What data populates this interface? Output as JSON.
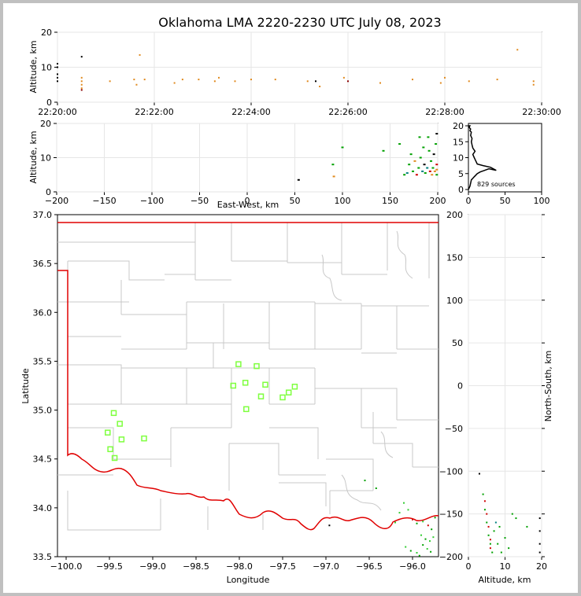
{
  "chart_data": [
    {
      "id": "time_height",
      "type": "scatter",
      "title": "Oklahoma LMA 2220-2230 UTC July 08, 2023",
      "xlabel": "",
      "ylabel": "Altitude, km",
      "xlim": [
        "22:20:00",
        "22:30:00"
      ],
      "ylim": [
        0,
        20
      ],
      "xticks": [
        "22:20:00",
        "22:22:00",
        "22:24:00",
        "22:26:00",
        "22:28:00",
        "22:30:00"
      ],
      "yticks": [
        0,
        10,
        20
      ],
      "grid": true,
      "points": [
        {
          "x": "22:20:00",
          "y": 11,
          "color": "#000000"
        },
        {
          "x": "22:20:00",
          "y": 10,
          "color": "#000000"
        },
        {
          "x": "22:20:00",
          "y": 8,
          "color": "#000000"
        },
        {
          "x": "22:20:00",
          "y": 7,
          "color": "#000000"
        },
        {
          "x": "22:20:00",
          "y": 6,
          "color": "#000000"
        },
        {
          "x": "22:20:30",
          "y": 13,
          "color": "#000000"
        },
        {
          "x": "22:20:30",
          "y": 7,
          "color": "#e08a1e"
        },
        {
          "x": "22:20:30",
          "y": 6,
          "color": "#e08a1e"
        },
        {
          "x": "22:20:30",
          "y": 5,
          "color": "#e08a1e"
        },
        {
          "x": "22:20:30",
          "y": 4,
          "color": "#e08a1e"
        },
        {
          "x": "22:20:30",
          "y": 3.5,
          "color": "#8b0000"
        },
        {
          "x": "22:21:05",
          "y": 6,
          "color": "#e08a1e"
        },
        {
          "x": "22:21:35",
          "y": 6.5,
          "color": "#e08a1e"
        },
        {
          "x": "22:21:38",
          "y": 5,
          "color": "#e08a1e"
        },
        {
          "x": "22:21:42",
          "y": 13.5,
          "color": "#e08a1e"
        },
        {
          "x": "22:21:48",
          "y": 6.5,
          "color": "#e08a1e"
        },
        {
          "x": "22:22:25",
          "y": 5.5,
          "color": "#e08a1e"
        },
        {
          "x": "22:22:35",
          "y": 6.5,
          "color": "#e08a1e"
        },
        {
          "x": "22:22:55",
          "y": 6.5,
          "color": "#e08a1e"
        },
        {
          "x": "22:23:15",
          "y": 6,
          "color": "#e08a1e"
        },
        {
          "x": "22:23:20",
          "y": 7,
          "color": "#e08a1e"
        },
        {
          "x": "22:23:40",
          "y": 6,
          "color": "#e08a1e"
        },
        {
          "x": "22:24:00",
          "y": 6.5,
          "color": "#e08a1e"
        },
        {
          "x": "22:24:30",
          "y": 6.5,
          "color": "#e08a1e"
        },
        {
          "x": "22:25:10",
          "y": 6,
          "color": "#e08a1e"
        },
        {
          "x": "22:25:20",
          "y": 6,
          "color": "#000000"
        },
        {
          "x": "22:25:25",
          "y": 4.5,
          "color": "#e08a1e"
        },
        {
          "x": "22:25:55",
          "y": 7,
          "color": "#e08a1e"
        },
        {
          "x": "22:26:00",
          "y": 6,
          "color": "#8b0000"
        },
        {
          "x": "22:26:40",
          "y": 5.5,
          "color": "#e08a1e"
        },
        {
          "x": "22:27:20",
          "y": 6.5,
          "color": "#e08a1e"
        },
        {
          "x": "22:27:55",
          "y": 5.5,
          "color": "#e08a1e"
        },
        {
          "x": "22:28:00",
          "y": 7,
          "color": "#e08a1e"
        },
        {
          "x": "22:28:30",
          "y": 6,
          "color": "#e08a1e"
        },
        {
          "x": "22:29:05",
          "y": 6.5,
          "color": "#e08a1e"
        },
        {
          "x": "22:29:30",
          "y": 15,
          "color": "#e08a1e"
        },
        {
          "x": "22:29:50",
          "y": 6,
          "color": "#e08a1e"
        },
        {
          "x": "22:29:50",
          "y": 5,
          "color": "#e08a1e"
        }
      ]
    },
    {
      "id": "east_west",
      "type": "scatter",
      "title": "",
      "xlabel": "East-West, km",
      "ylabel": "Altitude, km",
      "xlim": [
        -200,
        200
      ],
      "ylim": [
        0,
        20
      ],
      "xticks": [
        -200,
        -150,
        -100,
        -50,
        0,
        50,
        100,
        150,
        200
      ],
      "yticks": [
        0,
        10,
        20
      ],
      "grid": true,
      "points": [
        {
          "x": 54,
          "y": 3.5,
          "color": "#000000"
        },
        {
          "x": 90,
          "y": 8,
          "color": "#00a000"
        },
        {
          "x": 91,
          "y": 4.5,
          "color": "#e08a1e"
        },
        {
          "x": 100,
          "y": 13,
          "color": "#00a000"
        },
        {
          "x": 143,
          "y": 12,
          "color": "#00a000"
        },
        {
          "x": 160,
          "y": 14,
          "color": "#00a000"
        },
        {
          "x": 165,
          "y": 5,
          "color": "#00a000"
        },
        {
          "x": 168,
          "y": 5.5,
          "color": "#008080"
        },
        {
          "x": 170,
          "y": 8,
          "color": "#00a000"
        },
        {
          "x": 172,
          "y": 11,
          "color": "#00a000"
        },
        {
          "x": 174,
          "y": 6,
          "color": "#00a000"
        },
        {
          "x": 176,
          "y": 9,
          "color": "#e08a1e"
        },
        {
          "x": 178,
          "y": 5,
          "color": "#d00000"
        },
        {
          "x": 180,
          "y": 7,
          "color": "#00a000"
        },
        {
          "x": 181,
          "y": 16,
          "color": "#00a000"
        },
        {
          "x": 182,
          "y": 10,
          "color": "#00a000"
        },
        {
          "x": 184,
          "y": 6,
          "color": "#008080"
        },
        {
          "x": 185,
          "y": 13,
          "color": "#00a000"
        },
        {
          "x": 186,
          "y": 8,
          "color": "#000000"
        },
        {
          "x": 187,
          "y": 5.5,
          "color": "#00a000"
        },
        {
          "x": 189,
          "y": 7,
          "color": "#008080"
        },
        {
          "x": 190,
          "y": 16,
          "color": "#00a000"
        },
        {
          "x": 191,
          "y": 12,
          "color": "#00a000"
        },
        {
          "x": 192,
          "y": 6,
          "color": "#d00000"
        },
        {
          "x": 193,
          "y": 9,
          "color": "#00a000"
        },
        {
          "x": 194,
          "y": 5,
          "color": "#e08a1e"
        },
        {
          "x": 195,
          "y": 7,
          "color": "#00a000"
        },
        {
          "x": 196,
          "y": 11,
          "color": "#000000"
        },
        {
          "x": 197,
          "y": 6,
          "color": "#e08a1e"
        },
        {
          "x": 198,
          "y": 14,
          "color": "#00a000"
        },
        {
          "x": 199,
          "y": 8,
          "color": "#d00000"
        },
        {
          "x": 199,
          "y": 6.5,
          "color": "#e08a1e"
        },
        {
          "x": 199,
          "y": 5,
          "color": "#00a000"
        },
        {
          "x": 199,
          "y": 17,
          "color": "#000000"
        }
      ]
    },
    {
      "id": "altitude_histogram",
      "type": "line",
      "title": "",
      "xlabel": "",
      "ylabel": "",
      "xlim": [
        0,
        100
      ],
      "ylim": [
        0,
        20
      ],
      "xticks": [
        0,
        50,
        100
      ],
      "yticks": [
        0,
        5,
        10,
        15,
        20
      ],
      "annotation": "829 sources",
      "x": [
        0,
        2,
        3,
        4,
        6,
        8,
        10,
        12,
        16,
        22,
        28,
        38,
        30,
        20,
        12,
        10,
        8,
        6,
        9,
        6,
        5,
        4,
        5,
        3,
        4,
        2,
        3,
        1,
        2,
        0
      ],
      "y": [
        0,
        1,
        2,
        3,
        3.5,
        4,
        4.5,
        5,
        5.5,
        6,
        6.5,
        6,
        7,
        7.5,
        8,
        9,
        10,
        11,
        12,
        13,
        14,
        15,
        16,
        17,
        18,
        18.5,
        19,
        19.5,
        20,
        20
      ]
    },
    {
      "id": "plan_view",
      "type": "scatter",
      "title": "",
      "xlabel": "Longitude",
      "ylabel": "Latitude",
      "xlim": [
        -100.1,
        -95.7
      ],
      "ylim": [
        33.5,
        37.0
      ],
      "xticks": [
        -100.0,
        -99.5,
        -99.0,
        -98.5,
        -98.0,
        -97.5,
        -97.0,
        -96.5,
        -96.0
      ],
      "xtick_labels": [
        "−100.0",
        "−99.5",
        "−99.0",
        "−98.5",
        "−98.0",
        "−97.5",
        "−97.0",
        "−96.5",
        "−96.0"
      ],
      "yticks": [
        33.5,
        34.0,
        34.5,
        35.0,
        35.5,
        36.0,
        36.5,
        37.0
      ],
      "stations": [
        [
          -99.45,
          34.97
        ],
        [
          -99.38,
          34.86
        ],
        [
          -99.52,
          34.77
        ],
        [
          -99.36,
          34.7
        ],
        [
          -99.49,
          34.6
        ],
        [
          -99.44,
          34.51
        ],
        [
          -99.1,
          34.71
        ],
        [
          -98.01,
          35.47
        ],
        [
          -97.8,
          35.45
        ],
        [
          -98.07,
          35.25
        ],
        [
          -97.93,
          35.28
        ],
        [
          -97.7,
          35.26
        ],
        [
          -97.36,
          35.24
        ],
        [
          -97.43,
          35.18
        ],
        [
          -97.75,
          35.14
        ],
        [
          -97.5,
          35.13
        ],
        [
          -97.92,
          35.01
        ]
      ],
      "points": [
        {
          "x": -96.96,
          "y": 33.82,
          "color": "#000000"
        },
        {
          "x": -96.42,
          "y": 34.2,
          "color": "#00a000"
        },
        {
          "x": -96.55,
          "y": 34.28,
          "color": "#00a000"
        },
        {
          "x": -96.1,
          "y": 34.05,
          "color": "#33cc33"
        },
        {
          "x": -96.05,
          "y": 33.98,
          "color": "#33cc33"
        },
        {
          "x": -96.0,
          "y": 33.88,
          "color": "#d00000"
        },
        {
          "x": -95.95,
          "y": 33.84,
          "color": "#00a000"
        },
        {
          "x": -95.88,
          "y": 33.86,
          "color": "#33cc33"
        },
        {
          "x": -95.82,
          "y": 33.82,
          "color": "#d00000"
        },
        {
          "x": -95.78,
          "y": 33.78,
          "color": "#00a000"
        },
        {
          "x": -95.9,
          "y": 33.72,
          "color": "#33cc33"
        },
        {
          "x": -95.85,
          "y": 33.68,
          "color": "#00a000"
        },
        {
          "x": -95.8,
          "y": 33.66,
          "color": "#33cc33"
        },
        {
          "x": -95.88,
          "y": 33.62,
          "color": "#00a000"
        },
        {
          "x": -95.83,
          "y": 33.58,
          "color": "#33cc33"
        },
        {
          "x": -95.79,
          "y": 33.55,
          "color": "#00a000"
        },
        {
          "x": -96.08,
          "y": 33.6,
          "color": "#33cc33"
        },
        {
          "x": -96.02,
          "y": 33.56,
          "color": "#00a000"
        },
        {
          "x": -95.95,
          "y": 33.54,
          "color": "#33cc33"
        },
        {
          "x": -95.92,
          "y": 33.51,
          "color": "#00a000"
        },
        {
          "x": -95.76,
          "y": 33.7,
          "color": "#33cc33"
        },
        {
          "x": -95.74,
          "y": 33.9,
          "color": "#00a000"
        },
        {
          "x": -96.2,
          "y": 33.85,
          "color": "#33cc33"
        },
        {
          "x": -96.15,
          "y": 33.95,
          "color": "#33cc33"
        }
      ]
    },
    {
      "id": "north_south",
      "type": "scatter",
      "title": "",
      "xlabel": "Altitude, km",
      "ylabel": "North-South, km",
      "xlim": [
        0,
        20
      ],
      "ylim": [
        -200,
        200
      ],
      "xticks": [
        0,
        10,
        20
      ],
      "yticks": [
        -200,
        -150,
        -100,
        -50,
        0,
        50,
        100,
        150,
        200
      ],
      "xtick_labels": [
        "0",
        "10",
        "20"
      ],
      "ytick_labels": [
        "−200",
        "−150",
        "−100",
        "−50",
        "0",
        "50",
        "100",
        "150",
        "200"
      ],
      "grid": true,
      "points": [
        {
          "x": 3,
          "y": -103,
          "color": "#000000"
        },
        {
          "x": 4,
          "y": -127,
          "color": "#00a000"
        },
        {
          "x": 4.5,
          "y": -135,
          "color": "#d00000"
        },
        {
          "x": 4.5,
          "y": -145,
          "color": "#00a000"
        },
        {
          "x": 5,
          "y": -150,
          "color": "#d00000"
        },
        {
          "x": 5,
          "y": -160,
          "color": "#00a000"
        },
        {
          "x": 5.5,
          "y": -165,
          "color": "#d00000"
        },
        {
          "x": 5.5,
          "y": -175,
          "color": "#00a000"
        },
        {
          "x": 6,
          "y": -180,
          "color": "#d00000"
        },
        {
          "x": 6,
          "y": -185,
          "color": "#00a000"
        },
        {
          "x": 6,
          "y": -190,
          "color": "#d00000"
        },
        {
          "x": 6.5,
          "y": -195,
          "color": "#00a000"
        },
        {
          "x": 7,
          "y": -170,
          "color": "#00a000"
        },
        {
          "x": 7.5,
          "y": -160,
          "color": "#008080"
        },
        {
          "x": 8,
          "y": -185,
          "color": "#00a000"
        },
        {
          "x": 8.5,
          "y": -165,
          "color": "#00a000"
        },
        {
          "x": 9,
          "y": -195,
          "color": "#00a000"
        },
        {
          "x": 10,
          "y": -178,
          "color": "#00a000"
        },
        {
          "x": 11,
          "y": -190,
          "color": "#00a000"
        },
        {
          "x": 12,
          "y": -150,
          "color": "#00a000"
        },
        {
          "x": 13,
          "y": -155,
          "color": "#00a000"
        },
        {
          "x": 16,
          "y": -165,
          "color": "#00a000"
        },
        {
          "x": 19.5,
          "y": -155,
          "color": "#000000"
        },
        {
          "x": 19.5,
          "y": -170,
          "color": "#000000"
        },
        {
          "x": 19.5,
          "y": -185,
          "color": "#000000"
        },
        {
          "x": 19.5,
          "y": -195,
          "color": "#000000"
        }
      ]
    }
  ]
}
